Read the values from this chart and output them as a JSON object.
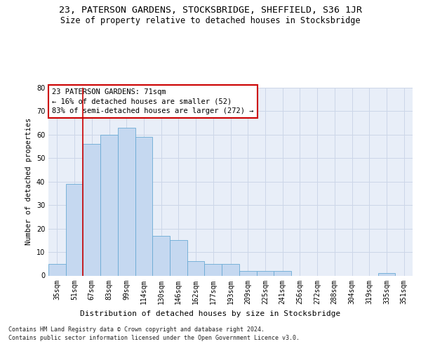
{
  "title": "23, PATERSON GARDENS, STOCKSBRIDGE, SHEFFIELD, S36 1JR",
  "subtitle": "Size of property relative to detached houses in Stocksbridge",
  "xlabel": "Distribution of detached houses by size in Stocksbridge",
  "ylabel": "Number of detached properties",
  "categories": [
    "35sqm",
    "51sqm",
    "67sqm",
    "83sqm",
    "99sqm",
    "114sqm",
    "130sqm",
    "146sqm",
    "162sqm",
    "177sqm",
    "193sqm",
    "209sqm",
    "225sqm",
    "241sqm",
    "256sqm",
    "272sqm",
    "288sqm",
    "304sqm",
    "319sqm",
    "335sqm",
    "351sqm"
  ],
  "values": [
    5,
    39,
    56,
    60,
    63,
    59,
    17,
    15,
    6,
    5,
    5,
    2,
    2,
    2,
    0,
    0,
    0,
    0,
    0,
    1,
    0
  ],
  "bar_color": "#c5d8f0",
  "bar_edge_color": "#6aaad4",
  "grid_color": "#ccd6e8",
  "background_color": "#e8eef8",
  "property_line_label": "23 PATERSON GARDENS: 71sqm",
  "annotation_line1": "← 16% of detached houses are smaller (52)",
  "annotation_line2": "83% of semi-detached houses are larger (272) →",
  "annotation_box_color": "#ffffff",
  "annotation_border_color": "#cc0000",
  "line_color": "#cc0000",
  "ylim": [
    0,
    80
  ],
  "yticks": [
    0,
    10,
    20,
    30,
    40,
    50,
    60,
    70,
    80
  ],
  "footnote1": "Contains HM Land Registry data © Crown copyright and database right 2024.",
  "footnote2": "Contains public sector information licensed under the Open Government Licence v3.0.",
  "title_fontsize": 9.5,
  "subtitle_fontsize": 8.5,
  "xlabel_fontsize": 8,
  "ylabel_fontsize": 7.5,
  "tick_fontsize": 7,
  "annot_fontsize": 7.5,
  "footnote_fontsize": 6
}
